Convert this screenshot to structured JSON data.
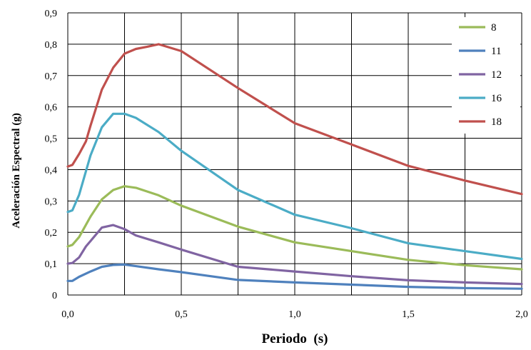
{
  "chart_data": {
    "type": "line",
    "xlabel": "Periodo  (s)",
    "ylabel": "Aceleración Espectral (g)",
    "xlim": [
      0,
      2
    ],
    "ylim": [
      0,
      0.9
    ],
    "x_ticks": [
      "0,0",
      "0,5",
      "1,0",
      "1,5",
      "2,0"
    ],
    "y_ticks": [
      "0",
      "0,1",
      "0,2",
      "0,3",
      "0,4",
      "0,5",
      "0,6",
      "0,7",
      "0,8",
      "0,9"
    ],
    "x_grid_step": 0.25,
    "y_grid_step": 0.1,
    "grid": true,
    "legend_position": "top-right",
    "series": [
      {
        "name": "8",
        "color": "#9bbb59",
        "x": [
          0,
          0.02,
          0.05,
          0.1,
          0.15,
          0.2,
          0.25,
          0.3,
          0.4,
          0.5,
          0.75,
          1.0,
          1.25,
          1.5,
          1.75,
          2.0
        ],
        "y": [
          0.155,
          0.16,
          0.185,
          0.25,
          0.305,
          0.335,
          0.347,
          0.342,
          0.318,
          0.285,
          0.218,
          0.168,
          0.14,
          0.112,
          0.095,
          0.082
        ]
      },
      {
        "name": "11",
        "color": "#4f81bd",
        "x": [
          0,
          0.02,
          0.05,
          0.1,
          0.15,
          0.2,
          0.25,
          0.3,
          0.4,
          0.5,
          0.75,
          1.0,
          1.25,
          1.5,
          1.75,
          2.0
        ],
        "y": [
          0.045,
          0.045,
          0.058,
          0.075,
          0.09,
          0.096,
          0.097,
          0.092,
          0.082,
          0.073,
          0.048,
          0.04,
          0.033,
          0.026,
          0.022,
          0.02
        ]
      },
      {
        "name": "12",
        "color": "#8064a2",
        "x": [
          0,
          0.02,
          0.05,
          0.08,
          0.1,
          0.15,
          0.2,
          0.25,
          0.3,
          0.4,
          0.5,
          0.75,
          1.0,
          1.25,
          1.5,
          1.75,
          2.0
        ],
        "y": [
          0.1,
          0.102,
          0.12,
          0.155,
          0.172,
          0.215,
          0.223,
          0.21,
          0.19,
          0.168,
          0.145,
          0.09,
          0.075,
          0.06,
          0.047,
          0.04,
          0.035
        ]
      },
      {
        "name": "16",
        "color": "#4bacc6",
        "x": [
          0,
          0.02,
          0.05,
          0.1,
          0.15,
          0.2,
          0.25,
          0.3,
          0.4,
          0.5,
          0.75,
          1.0,
          1.25,
          1.5,
          1.75,
          2.0
        ],
        "y": [
          0.265,
          0.27,
          0.32,
          0.445,
          0.535,
          0.578,
          0.578,
          0.565,
          0.52,
          0.46,
          0.335,
          0.256,
          0.213,
          0.165,
          0.14,
          0.115
        ]
      },
      {
        "name": "18",
        "color": "#c0504d",
        "x": [
          0,
          0.02,
          0.05,
          0.08,
          0.1,
          0.15,
          0.2,
          0.25,
          0.3,
          0.35,
          0.4,
          0.5,
          0.75,
          1.0,
          1.25,
          1.5,
          1.75,
          2.0
        ],
        "y": [
          0.41,
          0.415,
          0.45,
          0.49,
          0.54,
          0.655,
          0.725,
          0.77,
          0.785,
          0.792,
          0.8,
          0.778,
          0.66,
          0.548,
          0.48,
          0.412,
          0.365,
          0.322
        ]
      }
    ]
  }
}
